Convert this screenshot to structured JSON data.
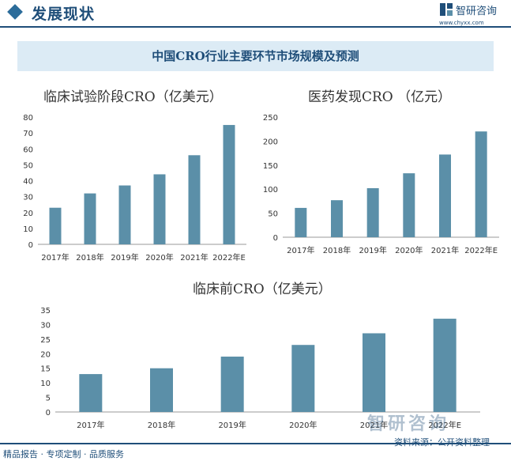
{
  "header": {
    "title": "发展现状"
  },
  "logo": {
    "name": "智研咨询",
    "url": "www.chyxx.com"
  },
  "banner": {
    "title": "中国CRO行业主要环节市场规模及预测"
  },
  "colors": {
    "bar": "#5b8fa8",
    "axis": "#999999",
    "brand": "#1f4e79"
  },
  "chart_data": [
    {
      "type": "bar",
      "title": "临床试验阶段CRO（亿美元）",
      "categories": [
        "2017年",
        "2018年",
        "2019年",
        "2020年",
        "2021年",
        "2022年E"
      ],
      "values": [
        23,
        32,
        37,
        44,
        56,
        75
      ],
      "ylim": [
        0,
        80
      ],
      "yticks": [
        0,
        10,
        20,
        30,
        40,
        50,
        60,
        70,
        80
      ]
    },
    {
      "type": "bar",
      "title": "医药发现CRO （亿元）",
      "categories": [
        "2017年",
        "2018年",
        "2019年",
        "2020年",
        "2021年",
        "2022年E"
      ],
      "values": [
        61,
        77,
        102,
        133,
        172,
        220
      ],
      "ylim": [
        0,
        250
      ],
      "yticks": [
        0,
        50,
        100,
        150,
        200,
        250
      ]
    },
    {
      "type": "bar",
      "title": "临床前CRO（亿美元）",
      "categories": [
        "2017年",
        "2018年",
        "2019年",
        "2020年",
        "2021年",
        "2022年E"
      ],
      "values": [
        13,
        15,
        19,
        23,
        27,
        32
      ],
      "ylim": [
        0,
        35
      ],
      "yticks": [
        0,
        5,
        10,
        15,
        20,
        25,
        30,
        35
      ]
    }
  ],
  "footer": {
    "left": "精品报告 · 专项定制 · 品质服务",
    "source": "资料来源：公开资料整理"
  },
  "watermark": "智研咨询"
}
